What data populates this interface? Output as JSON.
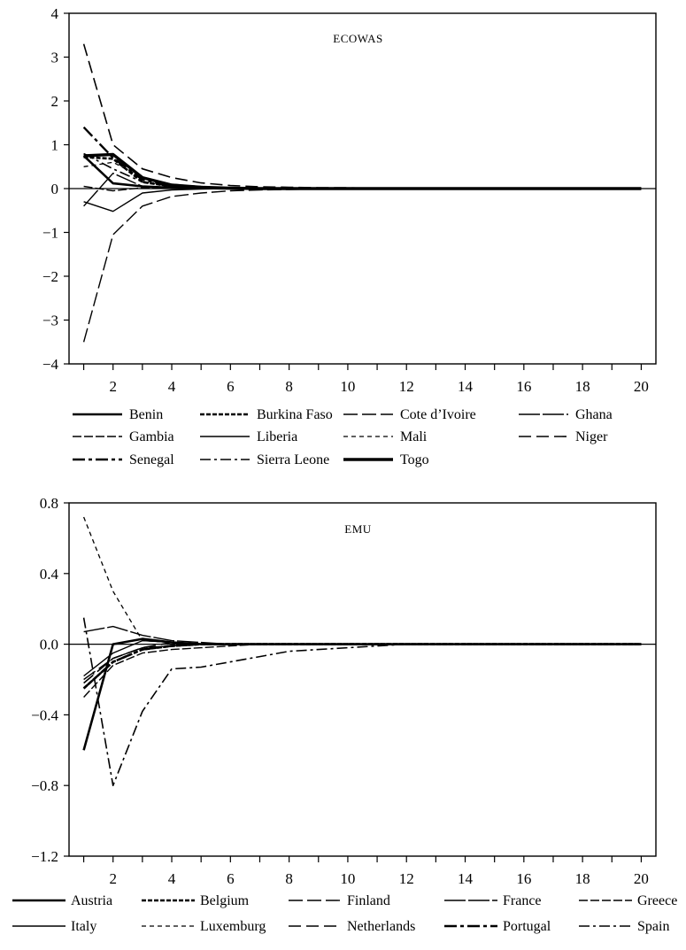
{
  "chart_data": [
    {
      "type": "line",
      "title": "ECOWAS",
      "x": [
        1,
        2,
        3,
        4,
        5,
        6,
        7,
        8,
        9,
        10,
        11,
        12,
        13,
        14,
        15,
        16,
        17,
        18,
        19,
        20
      ],
      "xticks": [
        "2",
        "4",
        "6",
        "8",
        "10",
        "12",
        "14",
        "16",
        "18",
        "20"
      ],
      "xtick_values": [
        2,
        4,
        6,
        8,
        10,
        12,
        14,
        16,
        18,
        20
      ],
      "yticks": [
        "4",
        "3",
        "2",
        "1",
        "0",
        "−1",
        "−2",
        "−3",
        "−4"
      ],
      "ytick_values": [
        4,
        3,
        2,
        1,
        0,
        -1,
        -2,
        -3,
        -4
      ],
      "xlim": [
        0.5,
        20.5
      ],
      "ylim": [
        -4,
        4
      ],
      "xlabel": "",
      "ylabel": "",
      "series": [
        {
          "name": "Benin",
          "values": [
            0.75,
            0.12,
            0.05,
            0.02,
            0.01,
            0,
            0,
            0,
            0,
            0,
            0,
            0,
            0,
            0,
            0,
            0,
            0,
            0,
            0,
            0
          ]
        },
        {
          "name": "Burkina Faso",
          "values": [
            0.72,
            0.68,
            0.15,
            0.05,
            0.02,
            0.01,
            0,
            0,
            0,
            0,
            0,
            0,
            0,
            0,
            0,
            0,
            0,
            0,
            0,
            0
          ]
        },
        {
          "name": "Cote d’Ivoire",
          "values": [
            -3.5,
            -1.05,
            -0.4,
            -0.18,
            -0.1,
            -0.05,
            -0.03,
            -0.02,
            -0.01,
            0,
            0,
            0,
            0,
            0,
            0,
            0,
            0,
            0,
            0,
            0
          ]
        },
        {
          "name": "Ghana",
          "values": [
            -0.4,
            0.35,
            0.05,
            0.02,
            0.01,
            0,
            0,
            0,
            0,
            0,
            0,
            0,
            0,
            0,
            0,
            0,
            0,
            0,
            0,
            0
          ]
        },
        {
          "name": "Gambia",
          "values": [
            0.05,
            -0.05,
            0.02,
            0.01,
            0,
            0,
            0,
            0,
            0,
            0,
            0,
            0,
            0,
            0,
            0,
            0,
            0,
            0,
            0,
            0
          ]
        },
        {
          "name": "Liberia",
          "values": [
            -0.3,
            -0.52,
            -0.1,
            -0.03,
            -0.01,
            0,
            0,
            0,
            0,
            0,
            0,
            0,
            0,
            0,
            0,
            0,
            0,
            0,
            0,
            0
          ]
        },
        {
          "name": "Mali",
          "values": [
            0.5,
            0.6,
            0.25,
            0.1,
            0.05,
            0.02,
            0.01,
            0,
            0,
            0,
            0,
            0,
            0,
            0,
            0,
            0,
            0,
            0,
            0,
            0
          ]
        },
        {
          "name": "Niger",
          "values": [
            3.3,
            1.0,
            0.45,
            0.25,
            0.13,
            0.07,
            0.04,
            0.03,
            0.02,
            0.02,
            0,
            0,
            0,
            0,
            0,
            0,
            0,
            0,
            0,
            0
          ]
        },
        {
          "name": "Senegal",
          "values": [
            1.4,
            0.7,
            0.2,
            0.05,
            0.02,
            0.01,
            0,
            0,
            0,
            0,
            0,
            0,
            0,
            0,
            0,
            0,
            0,
            0,
            0,
            0
          ]
        },
        {
          "name": "Sierra Leone",
          "values": [
            0.8,
            0.45,
            0.15,
            0.05,
            0.02,
            0.01,
            0,
            0,
            0,
            0,
            0,
            0,
            0,
            0,
            0,
            0,
            0,
            0,
            0,
            0
          ]
        },
        {
          "name": "Togo",
          "values": [
            0.75,
            0.78,
            0.25,
            0.08,
            0.03,
            0.01,
            0,
            0,
            0,
            0,
            0,
            0,
            0,
            0,
            0,
            0,
            0,
            0,
            0,
            0
          ]
        }
      ]
    },
    {
      "type": "line",
      "title": "EMU",
      "x": [
        1,
        2,
        3,
        4,
        5,
        6,
        7,
        8,
        9,
        10,
        11,
        12,
        13,
        14,
        15,
        16,
        17,
        18,
        19,
        20
      ],
      "xticks": [
        "2",
        "4",
        "6",
        "8",
        "10",
        "12",
        "14",
        "16",
        "18",
        "20"
      ],
      "xtick_values": [
        2,
        4,
        6,
        8,
        10,
        12,
        14,
        16,
        18,
        20
      ],
      "yticks": [
        "0.8",
        "0.4",
        "0.0",
        "−0.4",
        "−0.8",
        "−1.2"
      ],
      "ytick_values": [
        0.8,
        0.4,
        0.0,
        -0.4,
        -0.8,
        -1.2
      ],
      "xlim": [
        0.5,
        20.5
      ],
      "ylim": [
        -1.2,
        0.8
      ],
      "xlabel": "",
      "ylabel": "",
      "series": [
        {
          "name": "Austria",
          "values": [
            -0.6,
            0.0,
            0.03,
            0.01,
            0,
            0,
            0,
            0,
            0,
            0,
            0,
            0,
            0,
            0,
            0,
            0,
            0,
            0,
            0,
            0
          ]
        },
        {
          "name": "Belgium",
          "values": [
            -0.25,
            -0.1,
            -0.03,
            -0.01,
            0,
            0,
            0,
            0,
            0,
            0,
            0,
            0,
            0,
            0,
            0,
            0,
            0,
            0,
            0,
            0
          ]
        },
        {
          "name": "Finland",
          "values": [
            -0.2,
            -0.08,
            -0.02,
            -0.01,
            0,
            0,
            0,
            0,
            0,
            0,
            0,
            0,
            0,
            0,
            0,
            0,
            0,
            0,
            0,
            0
          ]
        },
        {
          "name": "France",
          "values": [
            0.07,
            0.1,
            0.05,
            0.02,
            0.01,
            0,
            0,
            0,
            0,
            0,
            0,
            0,
            0,
            0,
            0,
            0,
            0,
            0,
            0,
            0
          ]
        },
        {
          "name": "Greece",
          "values": [
            -0.3,
            -0.12,
            -0.05,
            -0.03,
            -0.02,
            -0.01,
            0,
            0,
            0,
            0,
            0,
            0,
            0,
            0,
            0,
            0,
            0,
            0,
            0,
            0
          ]
        },
        {
          "name": "Italy",
          "values": [
            -0.18,
            -0.05,
            0.02,
            0.01,
            0,
            0,
            0,
            0,
            0,
            0,
            0,
            0,
            0,
            0,
            0,
            0,
            0,
            0,
            0,
            0
          ]
        },
        {
          "name": "Luxemburg",
          "values": [
            0.72,
            0.3,
            0.02,
            0.01,
            0,
            0,
            0,
            0,
            0,
            0,
            0,
            0,
            0,
            0,
            0,
            0,
            0,
            0,
            0,
            0
          ]
        },
        {
          "name": "Netherlands",
          "values": [
            -0.22,
            -0.08,
            -0.02,
            0.01,
            0,
            0,
            0,
            0,
            0,
            0,
            0,
            0,
            0,
            0,
            0,
            0,
            0,
            0,
            0,
            0
          ]
        },
        {
          "name": "Portugal",
          "values": [
            -0.25,
            -0.1,
            -0.03,
            -0.01,
            0,
            0,
            0,
            0,
            0,
            0,
            0,
            0,
            0,
            0,
            0,
            0,
            0,
            0,
            0,
            0
          ]
        },
        {
          "name": "Spain",
          "values": [
            0.15,
            -0.8,
            -0.38,
            -0.14,
            -0.13,
            -0.1,
            -0.07,
            -0.04,
            -0.03,
            -0.02,
            -0.01,
            0,
            0,
            0,
            0,
            0,
            0,
            0,
            0,
            0
          ]
        }
      ]
    }
  ]
}
